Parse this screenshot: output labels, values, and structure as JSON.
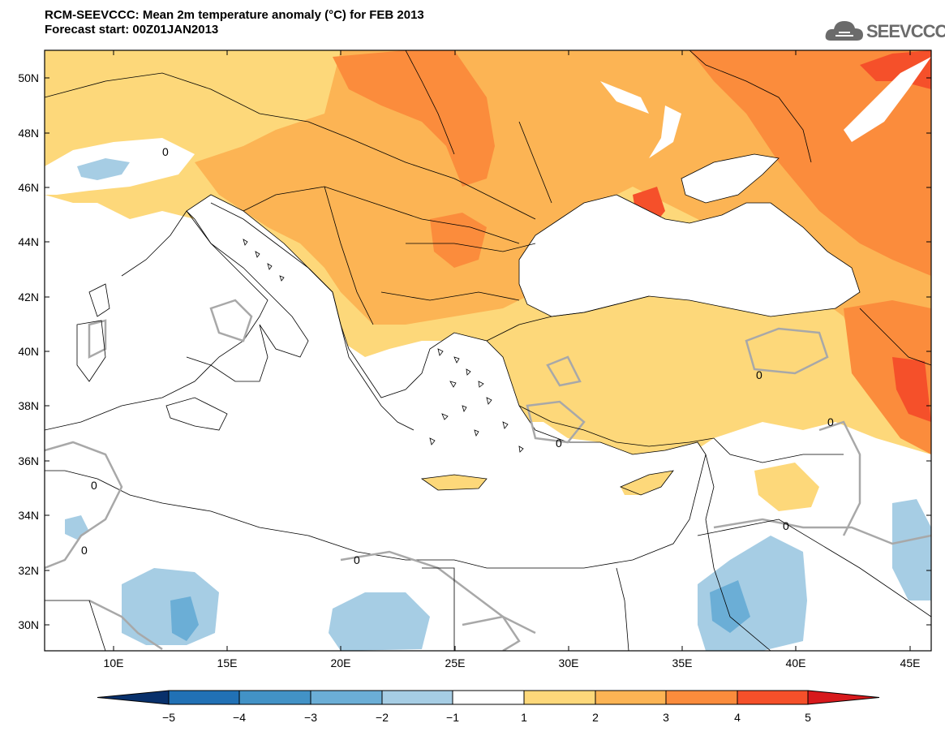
{
  "title": {
    "line1": "RCM-SEEVCCC: Mean 2m temperature anomaly (°C) for FEB 2013",
    "line2": "Forecast start: 00Z01JAN2013"
  },
  "logo": {
    "text": "SEEVCCC",
    "icon": "cloud-icon"
  },
  "map": {
    "lat_labels": [
      "50N",
      "48N",
      "46N",
      "44N",
      "42N",
      "40N",
      "38N",
      "36N",
      "34N",
      "32N",
      "30N"
    ],
    "lon_labels": [
      "10E",
      "15E",
      "20E",
      "25E",
      "30E",
      "35E",
      "40E",
      "45E"
    ],
    "contour_label": "0"
  },
  "colorbar": {
    "ticks": [
      "−5",
      "−4",
      "−3",
      "−2",
      "−1",
      "1",
      "2",
      "3",
      "4",
      "5"
    ],
    "colors": [
      "#08306b",
      "#2171b5",
      "#4292c6",
      "#6baed6",
      "#a6cde4",
      "#ffffff",
      "#fdd87a",
      "#fcb454",
      "#fb8c3c",
      "#f5502a",
      "#d7191c"
    ]
  }
}
